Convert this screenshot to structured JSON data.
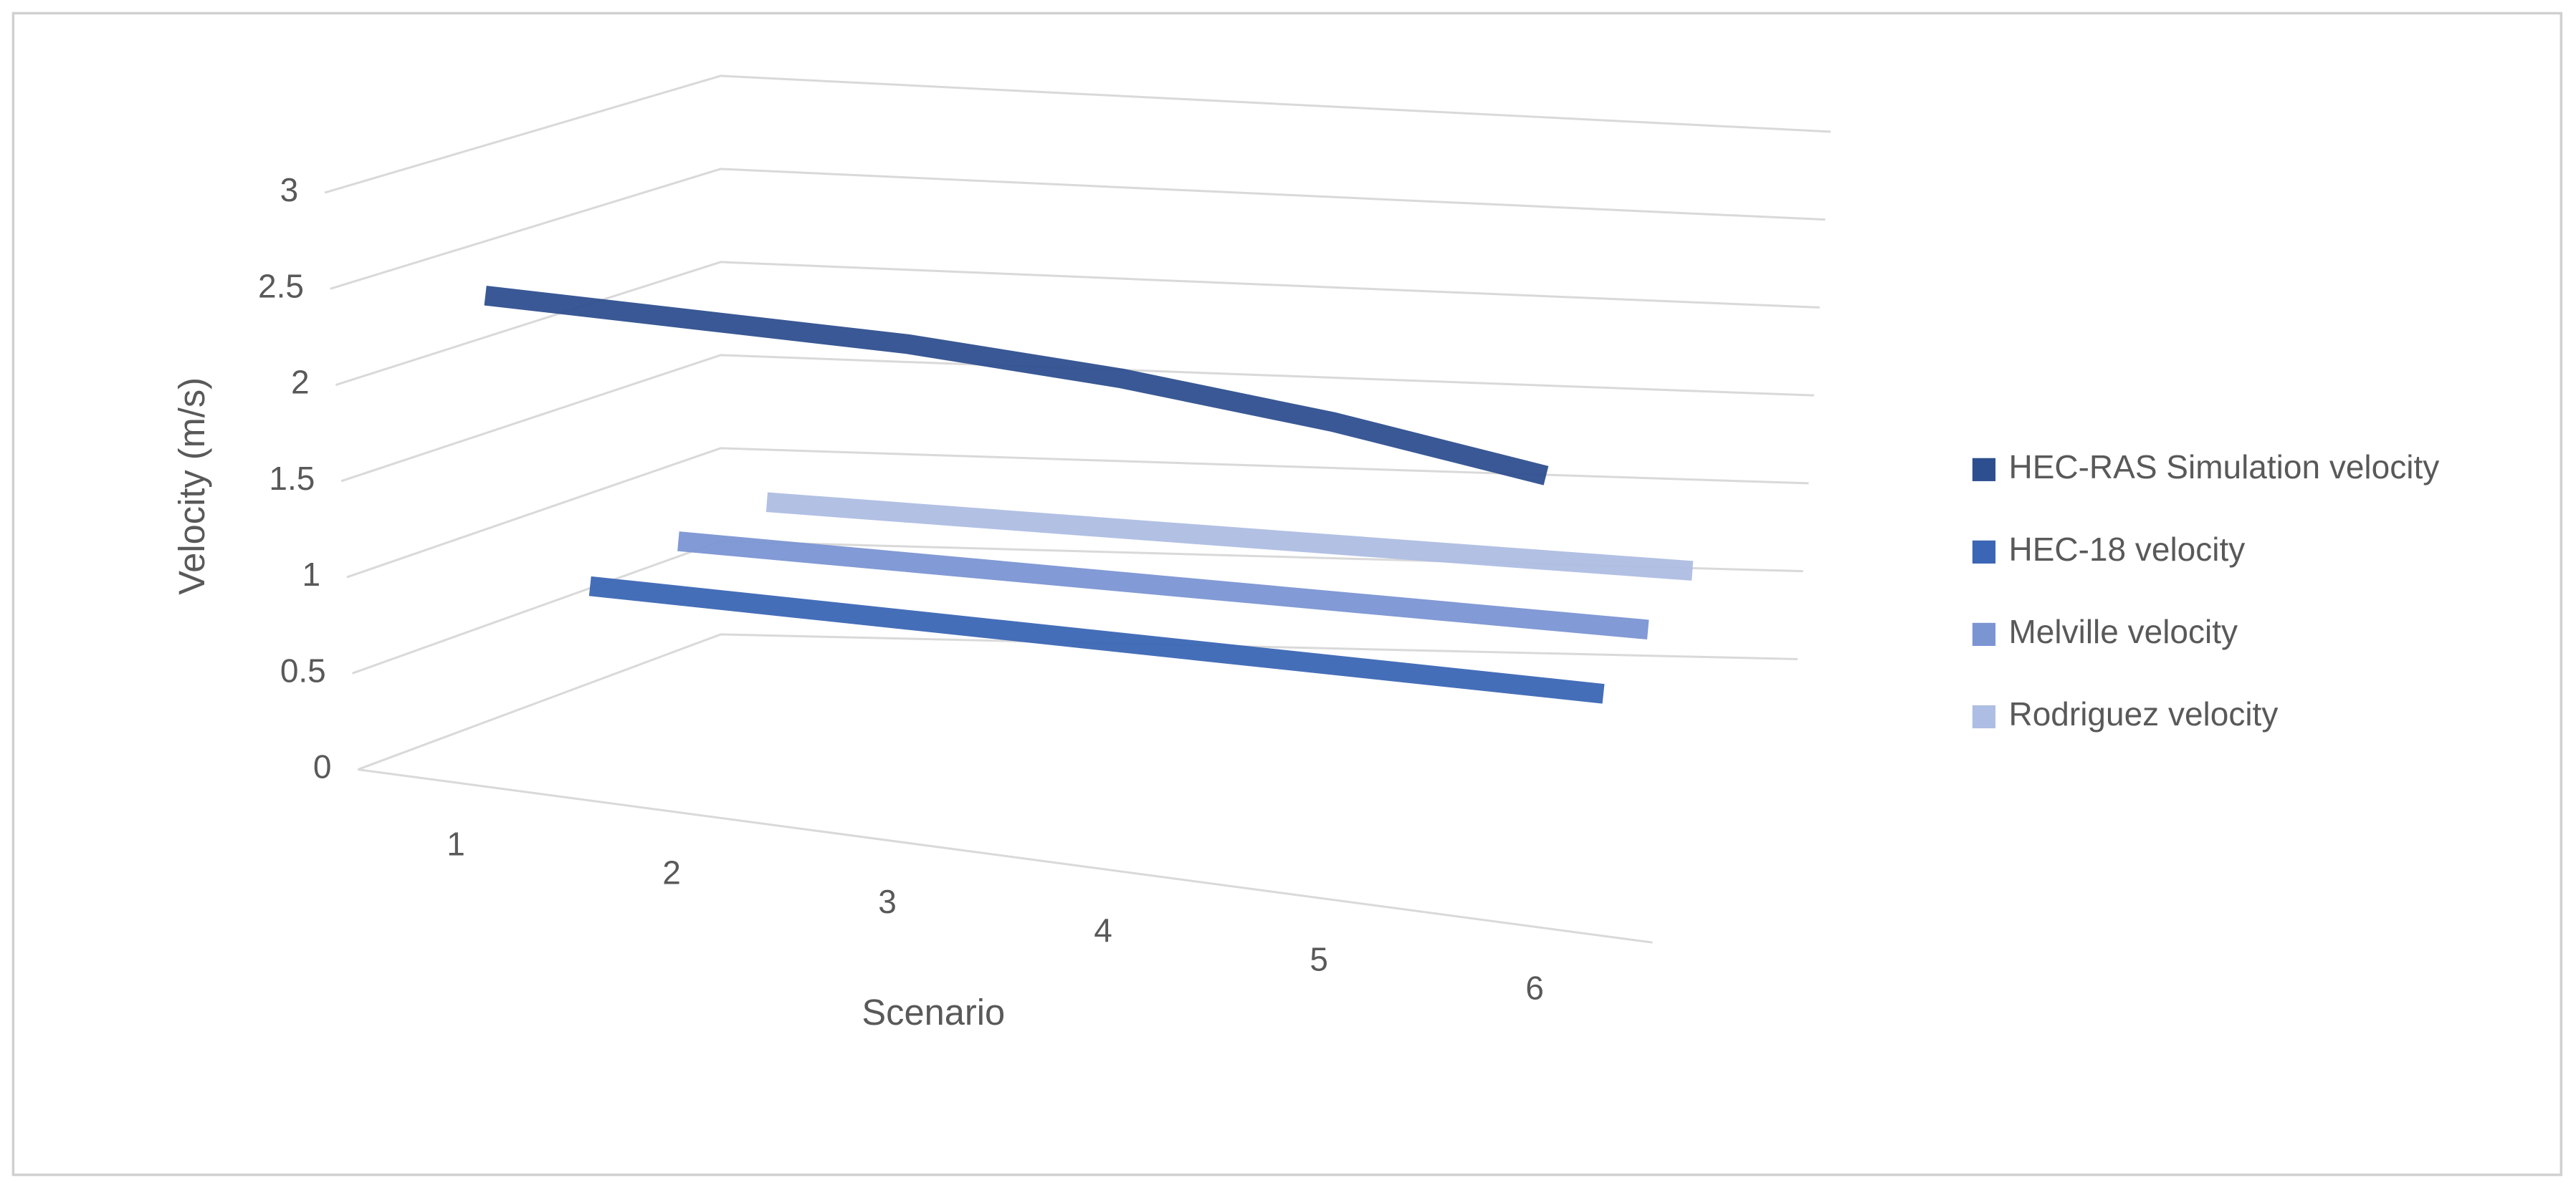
{
  "chart_data": {
    "type": "line3d",
    "y_label": "Velocity (m/s)",
    "x_label": "Scenario",
    "categories": [
      "1",
      "2",
      "3",
      "4",
      "5",
      "6"
    ],
    "series": [
      {
        "name": "HEC-RAS Simulation velocity",
        "color": "#2e4f8f",
        "values": [
          2.45,
          2.45,
          2.45,
          2.4,
          2.3,
          2.15
        ]
      },
      {
        "name": "HEC-18 velocity",
        "color": "#3b66b5",
        "values": [
          0.75,
          0.74,
          0.73,
          0.72,
          0.71,
          0.7
        ]
      },
      {
        "name": "Melville velocity",
        "color": "#7b95d3",
        "values": [
          0.8,
          0.78,
          0.76,
          0.74,
          0.72,
          0.7
        ]
      },
      {
        "name": "Rodriguez velocity",
        "color": "#aebde3",
        "values": [
          0.82,
          0.79,
          0.76,
          0.73,
          0.7,
          0.67
        ]
      }
    ],
    "ylim": [
      0,
      3
    ],
    "yticks": [
      0,
      0.5,
      1,
      1.5,
      2,
      2.5,
      3
    ],
    "grid": true,
    "legend": "right"
  }
}
